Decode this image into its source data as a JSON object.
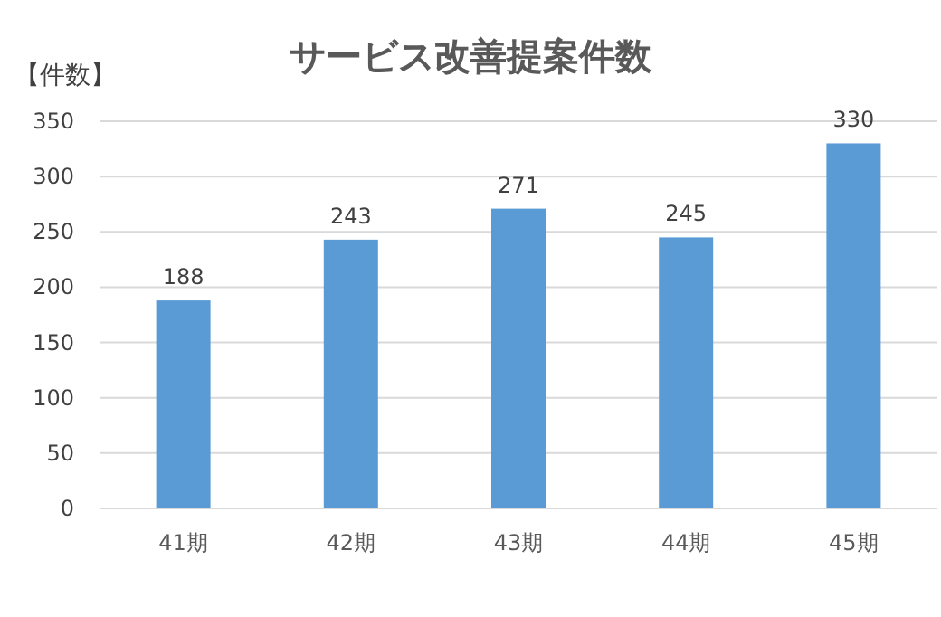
{
  "chart_data": {
    "type": "bar",
    "title": "サービス改善提案件数",
    "ylabel": "【件数】",
    "categories": [
      "41期",
      "42期",
      "43期",
      "44期",
      "45期"
    ],
    "values": [
      188,
      243,
      271,
      245,
      330
    ],
    "color": "#5b9bd5",
    "ylim": [
      0,
      350
    ],
    "yticks": [
      0,
      50,
      100,
      150,
      200,
      250,
      300,
      350
    ],
    "grid": "y",
    "data_labels": true
  }
}
